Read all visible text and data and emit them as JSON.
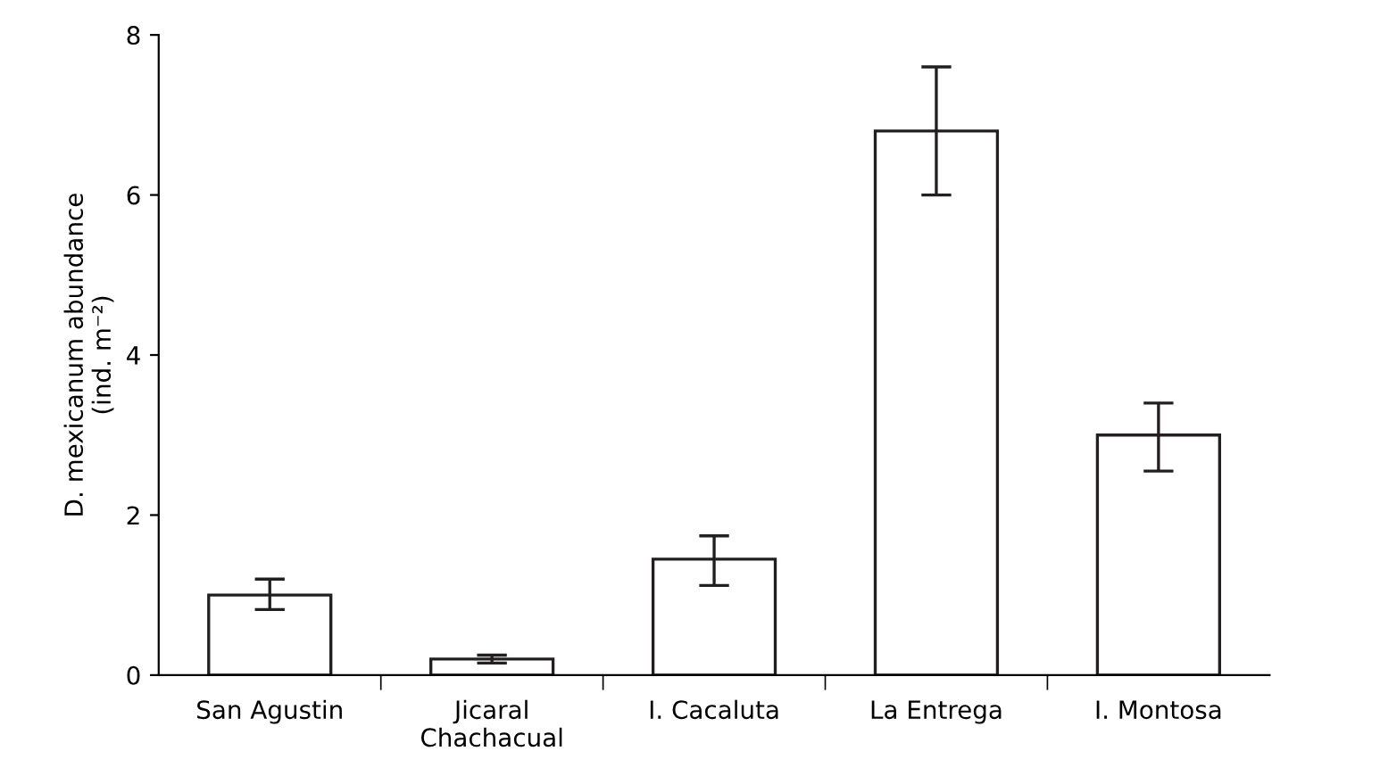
{
  "chart_data": {
    "type": "bar",
    "ylabel": "D. mexicanum abundance\n(ind. m⁻²)",
    "categories": [
      "San Agustin",
      "Jicaral\nChachacual",
      "I. Cacaluta",
      "La Entrega",
      "I. Montosa"
    ],
    "values": [
      1.0,
      0.2,
      1.45,
      6.8,
      3.0
    ],
    "errors": [
      [
        0.82,
        1.2
      ],
      [
        0.15,
        0.25
      ],
      [
        1.12,
        1.74
      ],
      [
        6.0,
        7.6
      ],
      [
        2.55,
        3.4
      ]
    ],
    "colors": [
      "#ffffff",
      "#ffffff",
      "#ffffff",
      "#ffffff",
      "#ffffff"
    ],
    "ylim": [
      0,
      8
    ],
    "yticks": [
      0,
      2,
      4,
      6,
      8
    ],
    "grid": false
  }
}
